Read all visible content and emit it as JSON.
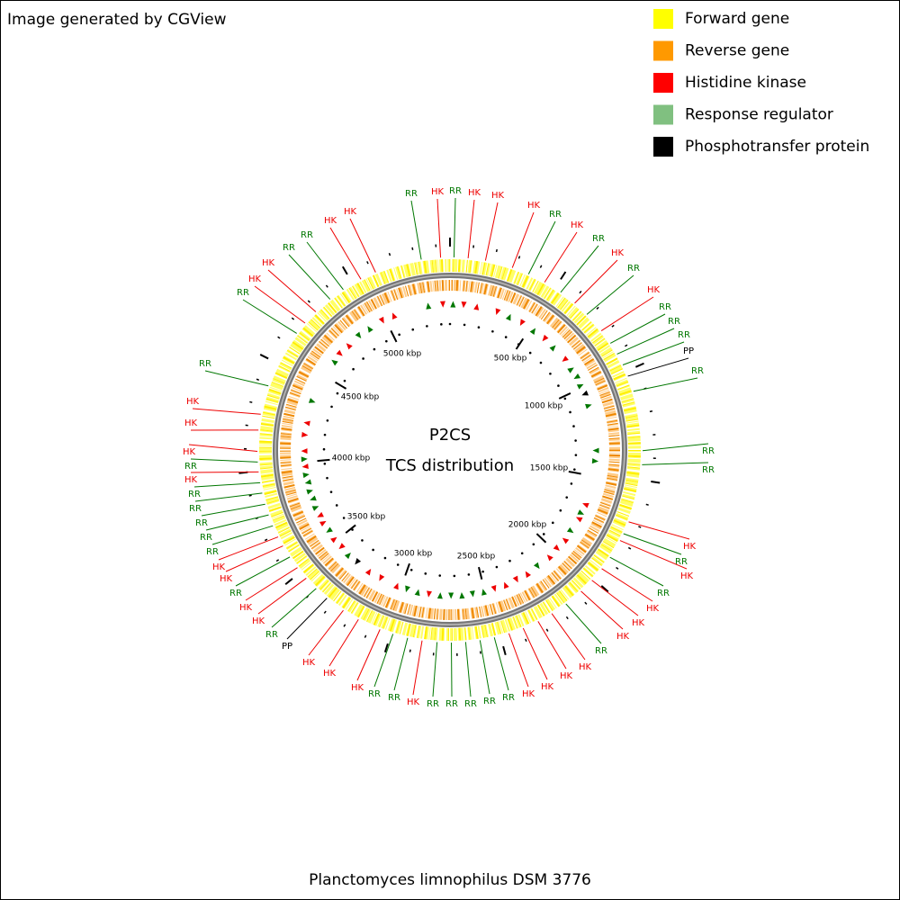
{
  "header": {
    "credit": "Image generated by CGView"
  },
  "legend": [
    {
      "label": "Forward gene",
      "color": "#ffff00"
    },
    {
      "label": "Reverse gene",
      "color": "#ff9900"
    },
    {
      "label": "Histidine kinase",
      "color": "#ff0000"
    },
    {
      "label": "Response regulator",
      "color": "#80c080"
    },
    {
      "label": "Phosphotransfer protein",
      "color": "#000000"
    }
  ],
  "center": {
    "line1": "P2CS",
    "line2": "TCS distribution"
  },
  "organism": "Planctomyces limnophilus DSM 3776",
  "scale_labels": [
    "5000 kbp",
    "500 kbp",
    "1000 kbp",
    "1500 kbp",
    "2000 kbp",
    "2500 kbp",
    "3000 kbp",
    "3500 kbp",
    "4000 kbp",
    "4500 kbp"
  ],
  "label_colors": {
    "HK": "#ee0000",
    "RR": "#007700",
    "PP": "#000000"
  },
  "feature_labels": [
    "RR",
    "HK",
    "RR",
    "HK",
    "HK",
    "HK",
    "RR",
    "HK",
    "RR",
    "HK",
    "RR",
    "HK",
    "RR",
    "RR",
    "RR",
    "PP",
    "RR",
    "RR",
    "RR",
    "HK",
    "RR",
    "HK",
    "RR",
    "HK",
    "HK",
    "HK",
    "RR",
    "HK",
    "HK",
    "HK",
    "HK",
    "RR",
    "RR",
    "RR",
    "RR",
    "RR",
    "HK",
    "RR",
    "RR",
    "HK",
    "HK",
    "HK",
    "PP",
    "RR",
    "HK",
    "HK",
    "RR",
    "HK",
    "HK",
    "RR",
    "RR",
    "RR",
    "RR",
    "RR",
    "HK",
    "RR",
    "HK",
    "HK",
    "HK",
    "RR",
    "RR",
    "HK",
    "HK",
    "RR",
    "RR",
    "HK",
    "HK"
  ]
}
